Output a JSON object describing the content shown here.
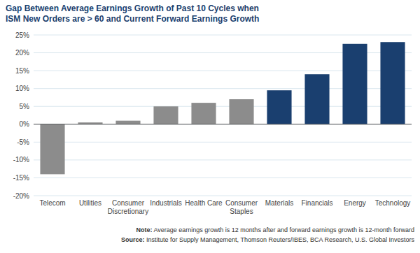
{
  "chart_data": {
    "type": "bar",
    "title": "Gap Between Average Earnings Growth of Past 10 Cycles when\nISM New Orders are > 60 and Current Forward Earnings Growth",
    "categories": [
      "Telecom",
      "Utilities",
      "Consumer\nDiscretionary",
      "Industrials",
      "Health Care",
      "Consumer\nStaples",
      "Materials",
      "Financials",
      "Energy",
      "Technology"
    ],
    "values": [
      -14.0,
      0.5,
      1.0,
      5.0,
      6.0,
      7.0,
      9.5,
      14.0,
      22.5,
      23.0
    ],
    "colors": [
      "#8c8c8c",
      "#8c8c8c",
      "#8c8c8c",
      "#8c8c8c",
      "#8c8c8c",
      "#8c8c8c",
      "#1a3f6f",
      "#1a3f6f",
      "#1a3f6f",
      "#1a3f6f"
    ],
    "ylim": [
      -20,
      25
    ],
    "yticks": [
      {
        "value": -20,
        "label": "-20%"
      },
      {
        "value": -15,
        "label": "-15%"
      },
      {
        "value": -10,
        "label": "-10%"
      },
      {
        "value": -5,
        "label": "-5%"
      },
      {
        "value": 0,
        "label": "0%"
      },
      {
        "value": 5,
        "label": "5%"
      },
      {
        "value": 10,
        "label": "10%"
      },
      {
        "value": 15,
        "label": "15%"
      },
      {
        "value": 20,
        "label": "20%"
      },
      {
        "value": 25,
        "label": "25%"
      }
    ],
    "grid": true,
    "annotations": [
      "Note: Average earnings growth is 12 months after and forward earnings growth is 12-month forward",
      "Source: Institute for Supply Management, Thomson Reuters/IBES, BCA Research, U.S. Global Investors"
    ]
  }
}
